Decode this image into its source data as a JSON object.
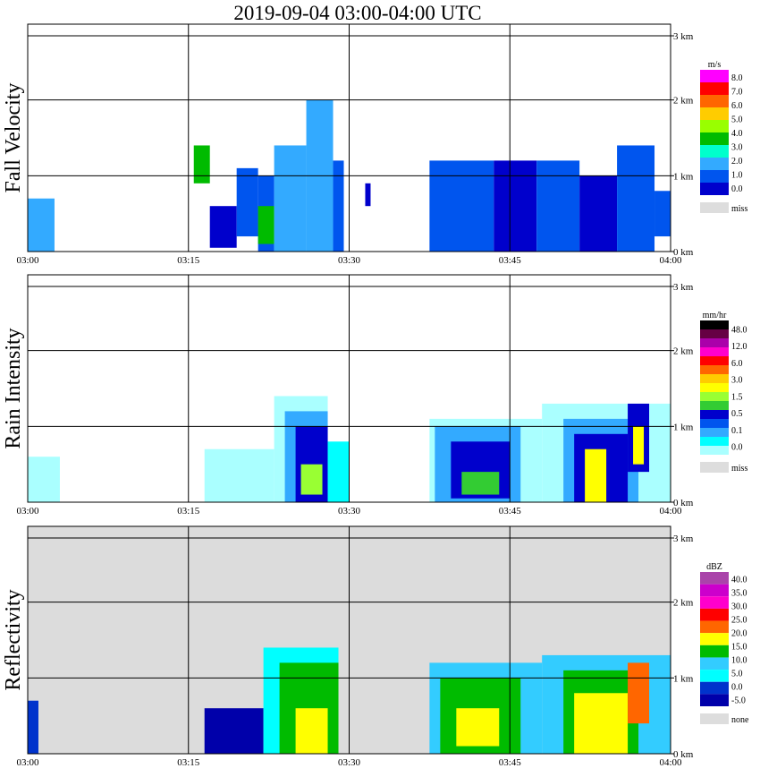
{
  "title": "2019-09-04   03:00-04:00 UTC",
  "chart_data": [
    {
      "type": "heatmap",
      "ylabel": "Fall Velocity",
      "xlabel": "",
      "x_ticks": [
        "03:00",
        "03:15",
        "03:30",
        "03:45",
        "04:00"
      ],
      "y_ticks": [
        "0 km",
        "1 km",
        "2 km",
        "3 km"
      ],
      "xlim": [
        0,
        60
      ],
      "ylim": [
        0,
        3.0
      ],
      "background": "#ffffff",
      "legend": {
        "unit": "m/s",
        "placement": "right",
        "labels": [
          "8.0",
          "7.0",
          "6.0",
          "5.0",
          "4.0",
          "3.0",
          "2.0",
          "1.0",
          "0.0"
        ],
        "colors": [
          "#ff00ff",
          "#ff0000",
          "#ff6600",
          "#ffcc00",
          "#99ff00",
          "#00bb00",
          "#00ffcc",
          "#33aaff",
          "#0055ee",
          "#0000cc"
        ],
        "miss_label": "miss",
        "miss_color": "#dddddd"
      },
      "cells": [
        {
          "x0": 0,
          "x1": 2.5,
          "y0": 0,
          "y1": 0.7,
          "level": 7
        },
        {
          "x0": 15.5,
          "x1": 17,
          "y0": 0.9,
          "y1": 1.4,
          "level": 5
        },
        {
          "x0": 17,
          "x1": 19.5,
          "y0": 0.05,
          "y1": 0.6,
          "level": 9
        },
        {
          "x0": 19.5,
          "x1": 21.5,
          "y0": 0.2,
          "y1": 1.1,
          "level": 8
        },
        {
          "x0": 21.5,
          "x1": 23,
          "y0": 0,
          "y1": 1.0,
          "level": 8
        },
        {
          "x0": 21.5,
          "x1": 23,
          "y0": 0.1,
          "y1": 0.6,
          "level": 5
        },
        {
          "x0": 23,
          "x1": 26,
          "y0": 0,
          "y1": 1.4,
          "level": 7
        },
        {
          "x0": 26,
          "x1": 28.5,
          "y0": 0,
          "y1": 2.0,
          "level": 7
        },
        {
          "x0": 28.5,
          "x1": 29.5,
          "y0": 0,
          "y1": 1.2,
          "level": 8
        },
        {
          "x0": 31.5,
          "x1": 32,
          "y0": 0.6,
          "y1": 0.9,
          "level": 9
        },
        {
          "x0": 37.5,
          "x1": 43.5,
          "y0": 0,
          "y1": 1.2,
          "level": 8
        },
        {
          "x0": 43.5,
          "x1": 47.5,
          "y0": 0,
          "y1": 1.2,
          "level": 9
        },
        {
          "x0": 47.5,
          "x1": 51.5,
          "y0": 0,
          "y1": 1.2,
          "level": 8
        },
        {
          "x0": 51.5,
          "x1": 55,
          "y0": 0,
          "y1": 1.0,
          "level": 9
        },
        {
          "x0": 55,
          "x1": 58.5,
          "y0": 0,
          "y1": 1.4,
          "level": 8
        },
        {
          "x0": 58.5,
          "x1": 60,
          "y0": 0.2,
          "y1": 0.8,
          "level": 8
        }
      ]
    },
    {
      "type": "heatmap",
      "ylabel": "Rain Intensity",
      "xlabel": "",
      "x_ticks": [
        "03:00",
        "03:15",
        "03:30",
        "03:45",
        "04:00"
      ],
      "y_ticks": [
        "0 km",
        "1 km",
        "2 km",
        "3 km"
      ],
      "xlim": [
        0,
        60
      ],
      "ylim": [
        0,
        3.0
      ],
      "background": "#ffffff",
      "legend": {
        "unit": "mm/hr",
        "placement": "right",
        "labels": [
          "48.0",
          "12.0",
          "6.0",
          "3.0",
          "1.5",
          "0.5",
          "0.1",
          "0.0"
        ],
        "colors": [
          "#000000",
          "#660044",
          "#aa00aa",
          "#ff00cc",
          "#ff0000",
          "#ff6600",
          "#ffcc00",
          "#ffff00",
          "#99ff33",
          "#33cc33",
          "#0000cc",
          "#0055ee",
          "#33aaff",
          "#00ffff",
          "#aaffff"
        ],
        "miss_label": "miss",
        "miss_color": "#dddddd"
      },
      "cells": [
        {
          "x0": 0,
          "x1": 3,
          "y0": 0,
          "y1": 0.6,
          "level": 14
        },
        {
          "x0": 16.5,
          "x1": 23,
          "y0": 0,
          "y1": 0.7,
          "level": 14
        },
        {
          "x0": 23,
          "x1": 28,
          "y0": 0,
          "y1": 1.4,
          "level": 14
        },
        {
          "x0": 24,
          "x1": 28,
          "y0": 0,
          "y1": 1.2,
          "level": 12
        },
        {
          "x0": 25,
          "x1": 28,
          "y0": 0,
          "y1": 1.0,
          "level": 10
        },
        {
          "x0": 25.5,
          "x1": 27.5,
          "y0": 0.1,
          "y1": 0.5,
          "level": 8
        },
        {
          "x0": 28,
          "x1": 30,
          "y0": 0,
          "y1": 0.8,
          "level": 13
        },
        {
          "x0": 37.5,
          "x1": 48,
          "y0": 0,
          "y1": 1.1,
          "level": 14
        },
        {
          "x0": 38,
          "x1": 46,
          "y0": 0,
          "y1": 1.0,
          "level": 12
        },
        {
          "x0": 39.5,
          "x1": 45,
          "y0": 0.05,
          "y1": 0.8,
          "level": 10
        },
        {
          "x0": 40.5,
          "x1": 44,
          "y0": 0.1,
          "y1": 0.4,
          "level": 9
        },
        {
          "x0": 48,
          "x1": 60,
          "y0": 0,
          "y1": 1.3,
          "level": 14
        },
        {
          "x0": 50,
          "x1": 57,
          "y0": 0,
          "y1": 1.1,
          "level": 12
        },
        {
          "x0": 51,
          "x1": 56,
          "y0": 0,
          "y1": 0.9,
          "level": 10
        },
        {
          "x0": 52,
          "x1": 54,
          "y0": 0,
          "y1": 0.7,
          "level": 7
        },
        {
          "x0": 56,
          "x1": 58,
          "y0": 0.4,
          "y1": 1.3,
          "level": 10
        },
        {
          "x0": 56.5,
          "x1": 57.5,
          "y0": 0.5,
          "y1": 1.0,
          "level": 7
        }
      ]
    },
    {
      "type": "heatmap",
      "ylabel": "Reflectivity",
      "xlabel": "",
      "x_ticks": [
        "03:00",
        "03:15",
        "03:30",
        "03:45",
        "04:00"
      ],
      "y_ticks": [
        "0 km",
        "1 km",
        "2 km",
        "3 km"
      ],
      "xlim": [
        0,
        60
      ],
      "ylim": [
        0,
        3.0
      ],
      "background": "#dcdcdc",
      "legend": {
        "unit": "dBZ",
        "placement": "right",
        "labels": [
          "40.0",
          "35.0",
          "30.0",
          "25.0",
          "20.0",
          "15.0",
          "10.0",
          "5.0",
          "0.0",
          "-5.0"
        ],
        "colors": [
          "#aa44aa",
          "#cc00cc",
          "#ff00cc",
          "#ff0000",
          "#ff6600",
          "#ffff00",
          "#00bb00",
          "#33ccff",
          "#00ffff",
          "#0033cc",
          "#0000aa"
        ],
        "miss_label": "none",
        "miss_color": "#dddddd"
      },
      "cells": [
        {
          "x0": 0,
          "x1": 1,
          "y0": 0,
          "y1": 0.7,
          "level": 9
        },
        {
          "x0": 16.5,
          "x1": 22,
          "y0": 0,
          "y1": 0.6,
          "level": 10
        },
        {
          "x0": 22,
          "x1": 29,
          "y0": 0,
          "y1": 1.4,
          "level": 8
        },
        {
          "x0": 23.5,
          "x1": 29,
          "y0": 0,
          "y1": 1.2,
          "level": 6
        },
        {
          "x0": 25,
          "x1": 28,
          "y0": 0,
          "y1": 0.6,
          "level": 5
        },
        {
          "x0": 37.5,
          "x1": 48,
          "y0": 0,
          "y1": 1.2,
          "level": 7
        },
        {
          "x0": 38.5,
          "x1": 46,
          "y0": 0,
          "y1": 1.0,
          "level": 6
        },
        {
          "x0": 40,
          "x1": 44,
          "y0": 0.1,
          "y1": 0.6,
          "level": 5
        },
        {
          "x0": 48,
          "x1": 60,
          "y0": 0,
          "y1": 1.3,
          "level": 7
        },
        {
          "x0": 50,
          "x1": 57,
          "y0": 0,
          "y1": 1.1,
          "level": 6
        },
        {
          "x0": 51,
          "x1": 56,
          "y0": 0,
          "y1": 0.8,
          "level": 5
        },
        {
          "x0": 56,
          "x1": 58,
          "y0": 0.4,
          "y1": 1.2,
          "level": 4
        }
      ]
    }
  ]
}
